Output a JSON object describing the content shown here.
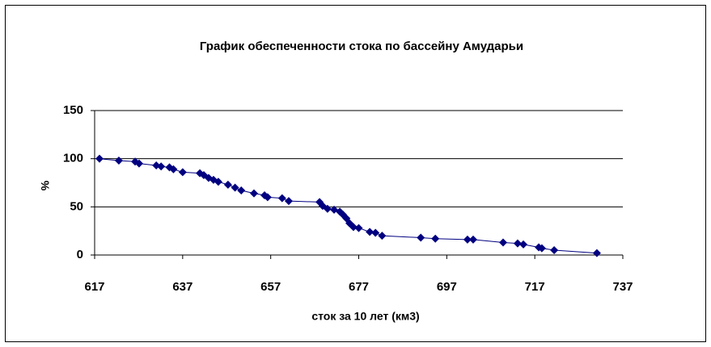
{
  "chart_data": {
    "type": "scatter",
    "title": "График обеспеченности стока по бассейну Амударьи",
    "x_label": "сток за 10 лет (км3)",
    "y_label": "%",
    "x": [
      618.1,
      622.5,
      626.2,
      627.1,
      631.0,
      632.1,
      634.0,
      634.9,
      637.0,
      640.9,
      641.8,
      642.9,
      644.0,
      645.1,
      647.3,
      648.9,
      650.3,
      653.2,
      655.6,
      656.3,
      659.6,
      661.1,
      668.1,
      668.8,
      669.9,
      671.4,
      672.7,
      673.4,
      674.2,
      674.9,
      675.8,
      677.0,
      679.5,
      680.8,
      682.3,
      691.1,
      694.4,
      701.7,
      703.0,
      709.8,
      713.1,
      714.4,
      717.9,
      718.6,
      721.4,
      731.1
    ],
    "values": [
      100,
      98,
      97,
      95,
      93,
      92,
      91,
      89,
      86,
      85,
      83,
      80,
      78,
      76,
      73,
      70,
      67,
      64,
      62,
      60,
      59,
      56,
      55,
      51,
      48,
      47,
      45,
      42,
      38,
      33,
      29,
      28,
      24,
      23,
      20,
      18,
      17,
      16,
      16,
      13,
      12,
      11,
      8,
      7,
      5,
      2
    ],
    "color": "#000080",
    "line": true,
    "marker": "diamond",
    "xlim": [
      617,
      737
    ],
    "xticks": [
      617,
      637,
      657,
      677,
      697,
      717,
      737
    ],
    "ylim": [
      0,
      150
    ],
    "yticks": [
      0,
      50,
      100,
      150
    ],
    "grid": true
  }
}
